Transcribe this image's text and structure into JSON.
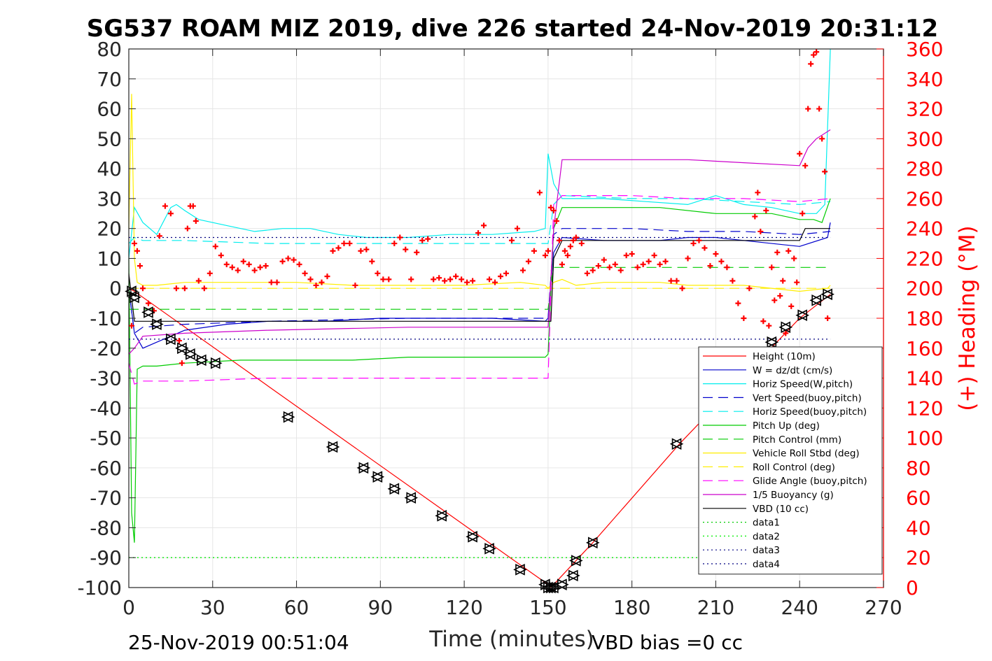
{
  "chart_data": {
    "type": "line",
    "title": "SG537 ROAM MIZ 2019, dive 226 started 24-Nov-2019 20:31:12",
    "xlabel": "Time (minutes)",
    "ylabel_right": "(+) Heading (°M)",
    "xlim": [
      0,
      270
    ],
    "ylim_left": [
      -100,
      80
    ],
    "ylim_right": [
      0,
      360
    ],
    "x_ticks": [
      "0",
      "30",
      "60",
      "90",
      "120",
      "150",
      "180",
      "210",
      "240",
      "270"
    ],
    "y_ticks_left": [
      "80",
      "70",
      "60",
      "50",
      "40",
      "30",
      "20",
      "10",
      "0",
      "-10",
      "-20",
      "-30",
      "-40",
      "-50",
      "-60",
      "-70",
      "-80",
      "-90",
      "-100"
    ],
    "y_ticks_right": [
      "360",
      "340",
      "320",
      "300",
      "280",
      "260",
      "240",
      "220",
      "200",
      "180",
      "160",
      "140",
      "120",
      "100",
      "80",
      "60",
      "40",
      "20",
      "0"
    ],
    "grid": true,
    "legend_position": "bottom-right",
    "footer_left": "25-Nov-2019 00:51:04",
    "footer_right": "VBD bias =0 cc",
    "series": [
      {
        "name": "Height (10m)",
        "color": "#ff0000",
        "style": "solid",
        "x": [
          0,
          2,
          150,
          151,
          152,
          166,
          197,
          240,
          251
        ],
        "y": [
          0,
          -1,
          -99,
          -100,
          -99,
          -85,
          -52,
          -10,
          -2
        ]
      },
      {
        "name": "W = dz/dt (cm/s)",
        "color": "#0000cc",
        "style": "solid",
        "x": [
          0,
          2,
          5,
          10,
          20,
          35,
          50,
          70,
          90,
          110,
          130,
          149,
          150,
          152,
          155,
          170,
          190,
          200,
          210,
          220,
          240,
          250,
          251
        ],
        "y": [
          0,
          -15,
          -20,
          -18,
          -14,
          -12,
          -11,
          -11,
          -10,
          -10,
          -10,
          -11,
          -10,
          12,
          17,
          16,
          16,
          17,
          17,
          16,
          14,
          17,
          22
        ]
      },
      {
        "name": "Horiz Speed(W,pitch)",
        "color": "#00eeee",
        "style": "solid",
        "x": [
          0,
          2,
          5,
          10,
          15,
          17,
          20,
          25,
          35,
          45,
          55,
          65,
          75,
          85,
          100,
          115,
          130,
          145,
          149,
          150,
          152,
          155,
          170,
          185,
          200,
          210,
          220,
          230,
          240,
          246,
          249,
          251
        ],
        "y": [
          10,
          27,
          22,
          18,
          27,
          28,
          26,
          23,
          21,
          19,
          20,
          20,
          18,
          17,
          17,
          18,
          18,
          19,
          20,
          45,
          35,
          30,
          30,
          29,
          28,
          31,
          28,
          27,
          25,
          25,
          28,
          80
        ]
      },
      {
        "name": "Vert Speed(buoy,pitch)",
        "color": "#0000cc",
        "style": "dashed",
        "x": [
          0,
          2,
          5,
          20,
          50,
          100,
          149,
          150,
          152,
          155,
          180,
          200,
          220,
          240,
          251
        ],
        "y": [
          0,
          -15,
          -13,
          -12,
          -11,
          -10,
          -10,
          -10,
          18,
          20,
          20,
          19,
          19,
          18,
          19
        ]
      },
      {
        "name": "Horiz Speed(buoy,pitch)",
        "color": "#00eeee",
        "style": "dashed",
        "x": [
          0,
          2,
          5,
          20,
          50,
          100,
          149,
          150,
          152,
          155,
          180,
          200,
          220,
          240,
          251
        ],
        "y": [
          15,
          17,
          16,
          16,
          15,
          15,
          15,
          15,
          28,
          31,
          30,
          30,
          29,
          28,
          29
        ]
      },
      {
        "name": "Pitch Up (deg)",
        "color": "#00cc00",
        "style": "solid",
        "x": [
          0,
          1,
          2,
          3,
          5,
          10,
          20,
          40,
          60,
          80,
          100,
          120,
          149,
          150,
          152,
          155,
          170,
          190,
          210,
          230,
          240,
          245,
          248,
          251
        ],
        "y": [
          10,
          -75,
          -85,
          -27,
          -26,
          -26,
          -25,
          -24,
          -24,
          -24,
          -23,
          -23,
          -23,
          -22,
          20,
          27,
          27,
          27,
          25,
          25,
          23,
          23,
          22,
          30
        ]
      },
      {
        "name": "Pitch Control (mm)",
        "color": "#00cc00",
        "style": "dashed",
        "x": [
          0,
          2,
          5,
          149,
          150,
          152,
          155,
          240,
          251
        ],
        "y": [
          -7,
          -7,
          -7,
          -7,
          -7,
          7,
          7,
          7,
          7
        ]
      },
      {
        "name": "Vehicle Roll Stbd (deg)",
        "color": "#ffee00",
        "style": "solid",
        "x": [
          0,
          1,
          2,
          3,
          5,
          10,
          20,
          30,
          40,
          60,
          80,
          100,
          120,
          140,
          149,
          150,
          152,
          155,
          160,
          170,
          190,
          200,
          220,
          240,
          250,
          251
        ],
        "y": [
          20,
          65,
          10,
          2,
          1,
          1,
          2,
          2,
          2,
          2,
          1,
          1,
          1,
          2,
          1,
          0,
          2,
          3,
          1,
          2,
          2,
          1,
          1,
          -1,
          0,
          1
        ]
      },
      {
        "name": "Roll Control (deg)",
        "color": "#ffee00",
        "style": "dashed",
        "x": [
          0,
          2,
          100,
          150,
          152,
          200,
          251
        ],
        "y": [
          0,
          0,
          0,
          0,
          0,
          0,
          0
        ]
      },
      {
        "name": "Glide Angle (buoy,pitch)",
        "color": "#ff00ff",
        "style": "dashed",
        "x": [
          0,
          2,
          5,
          20,
          50,
          100,
          149,
          150,
          152,
          155,
          180,
          200,
          220,
          240,
          251
        ],
        "y": [
          -25,
          -32,
          -31,
          -31,
          -30,
          -30,
          -30,
          -30,
          28,
          31,
          31,
          30,
          30,
          29,
          30
        ]
      },
      {
        "name": "1/5 Buoyancy (g)",
        "color": "#cc00cc",
        "style": "solid",
        "x": [
          0,
          2,
          5,
          20,
          50,
          100,
          149,
          150,
          152,
          155,
          200,
          220,
          240,
          243,
          246,
          251
        ],
        "y": [
          -22,
          -20,
          -16,
          -15,
          -14,
          -13,
          -13,
          -13,
          20,
          43,
          43,
          42,
          41,
          47,
          50,
          53
        ]
      },
      {
        "name": "VBD (10 cc)",
        "color": "#000000",
        "style": "solid",
        "x": [
          0,
          2,
          5,
          150,
          151,
          152,
          155,
          200,
          240,
          242,
          251
        ],
        "y": [
          5,
          -11,
          -11,
          -11,
          -11,
          10,
          16,
          16,
          16,
          20,
          20
        ]
      },
      {
        "name": "data1",
        "color": "#00cc00",
        "style": "dotted",
        "x": [
          0,
          251
        ],
        "y": [
          -90,
          -90
        ]
      },
      {
        "name": "data2",
        "color": "#00ee00",
        "style": "dotted",
        "x": [
          0,
          251
        ],
        "y": [
          -90,
          -90
        ]
      },
      {
        "name": "data3",
        "color": "#000080",
        "style": "dotted",
        "x": [
          0,
          251
        ],
        "y": [
          -17,
          -17
        ]
      },
      {
        "name": "data4",
        "color": "#000080",
        "style": "dotted",
        "x": [
          0,
          251
        ],
        "y": [
          17,
          17
        ]
      }
    ],
    "heading": {
      "name": "(+) Heading (°M)",
      "color": "#ff0000",
      "marker": "plus",
      "x": [
        1,
        2,
        3,
        4,
        5,
        7,
        9,
        11,
        13,
        15,
        17,
        18,
        19,
        20,
        21,
        22,
        23,
        24,
        25,
        27,
        29,
        31,
        33,
        35,
        37,
        39,
        41,
        43,
        45,
        47,
        49,
        51,
        53,
        55,
        57,
        59,
        61,
        63,
        65,
        67,
        69,
        71,
        73,
        75,
        77,
        79,
        81,
        83,
        85,
        87,
        89,
        91,
        93,
        95,
        97,
        99,
        101,
        103,
        105,
        107,
        109,
        111,
        113,
        115,
        117,
        119,
        121,
        123,
        125,
        127,
        129,
        131,
        133,
        135,
        137,
        139,
        141,
        143,
        145,
        147,
        149,
        150,
        151,
        152,
        153,
        154,
        155,
        156,
        157,
        158,
        159,
        160,
        162,
        164,
        166,
        168,
        170,
        172,
        174,
        176,
        178,
        180,
        182,
        184,
        186,
        188,
        190,
        192,
        194,
        196,
        198,
        200,
        202,
        204,
        206,
        208,
        210,
        212,
        214,
        216,
        218,
        220,
        222,
        224,
        225,
        226,
        227,
        228,
        229,
        230,
        231,
        232,
        233,
        234,
        235,
        236,
        237,
        238,
        239,
        240,
        241,
        242,
        243,
        244,
        245,
        246,
        247,
        248,
        249,
        250
      ],
      "y": [
        175,
        230,
        225,
        215,
        200,
        190,
        185,
        235,
        255,
        250,
        200,
        165,
        150,
        200,
        240,
        255,
        255,
        245,
        205,
        200,
        210,
        228,
        222,
        216,
        214,
        212,
        218,
        216,
        212,
        214,
        215,
        204,
        204,
        218,
        220,
        219,
        216,
        210,
        206,
        202,
        204,
        208,
        225,
        227,
        230,
        230,
        202,
        225,
        226,
        218,
        210,
        206,
        206,
        230,
        234,
        226,
        206,
        224,
        232,
        233,
        206,
        207,
        205,
        206,
        208,
        206,
        204,
        205,
        237,
        242,
        206,
        204,
        208,
        210,
        232,
        240,
        212,
        218,
        225,
        264,
        222,
        225,
        254,
        252,
        245,
        232,
        216,
        225,
        222,
        228,
        232,
        234,
        230,
        210,
        212,
        215,
        219,
        214,
        216,
        212,
        222,
        223,
        214,
        216,
        218,
        222,
        216,
        218,
        205,
        205,
        200,
        220,
        230,
        232,
        227,
        215,
        223,
        218,
        214,
        205,
        190,
        180,
        200,
        248,
        264,
        238,
        178,
        252,
        175,
        214,
        192,
        224,
        195,
        205,
        170,
        225,
        188,
        220,
        204,
        290,
        250,
        282,
        320,
        350,
        356,
        358,
        320,
        300,
        278,
        180
      ]
    },
    "markers": {
      "name": "dive markers",
      "x": [
        1,
        2,
        7,
        10,
        15,
        19,
        22,
        26,
        31,
        57,
        73,
        84,
        89,
        95,
        101,
        112,
        123,
        129,
        140,
        149,
        150,
        151,
        152,
        155,
        159,
        160,
        166,
        196,
        230,
        235,
        241,
        246,
        250
      ],
      "y": [
        -1,
        -3,
        -8,
        -12,
        -17,
        -20,
        -22,
        -24,
        -25,
        -43,
        -53,
        -60,
        -63,
        -67,
        -70,
        -76,
        -83,
        -87,
        -94,
        -99,
        -100,
        -100,
        -100,
        -99,
        -96,
        -91,
        -85,
        -52,
        -18,
        -13,
        -9,
        -4,
        -2
      ]
    }
  }
}
